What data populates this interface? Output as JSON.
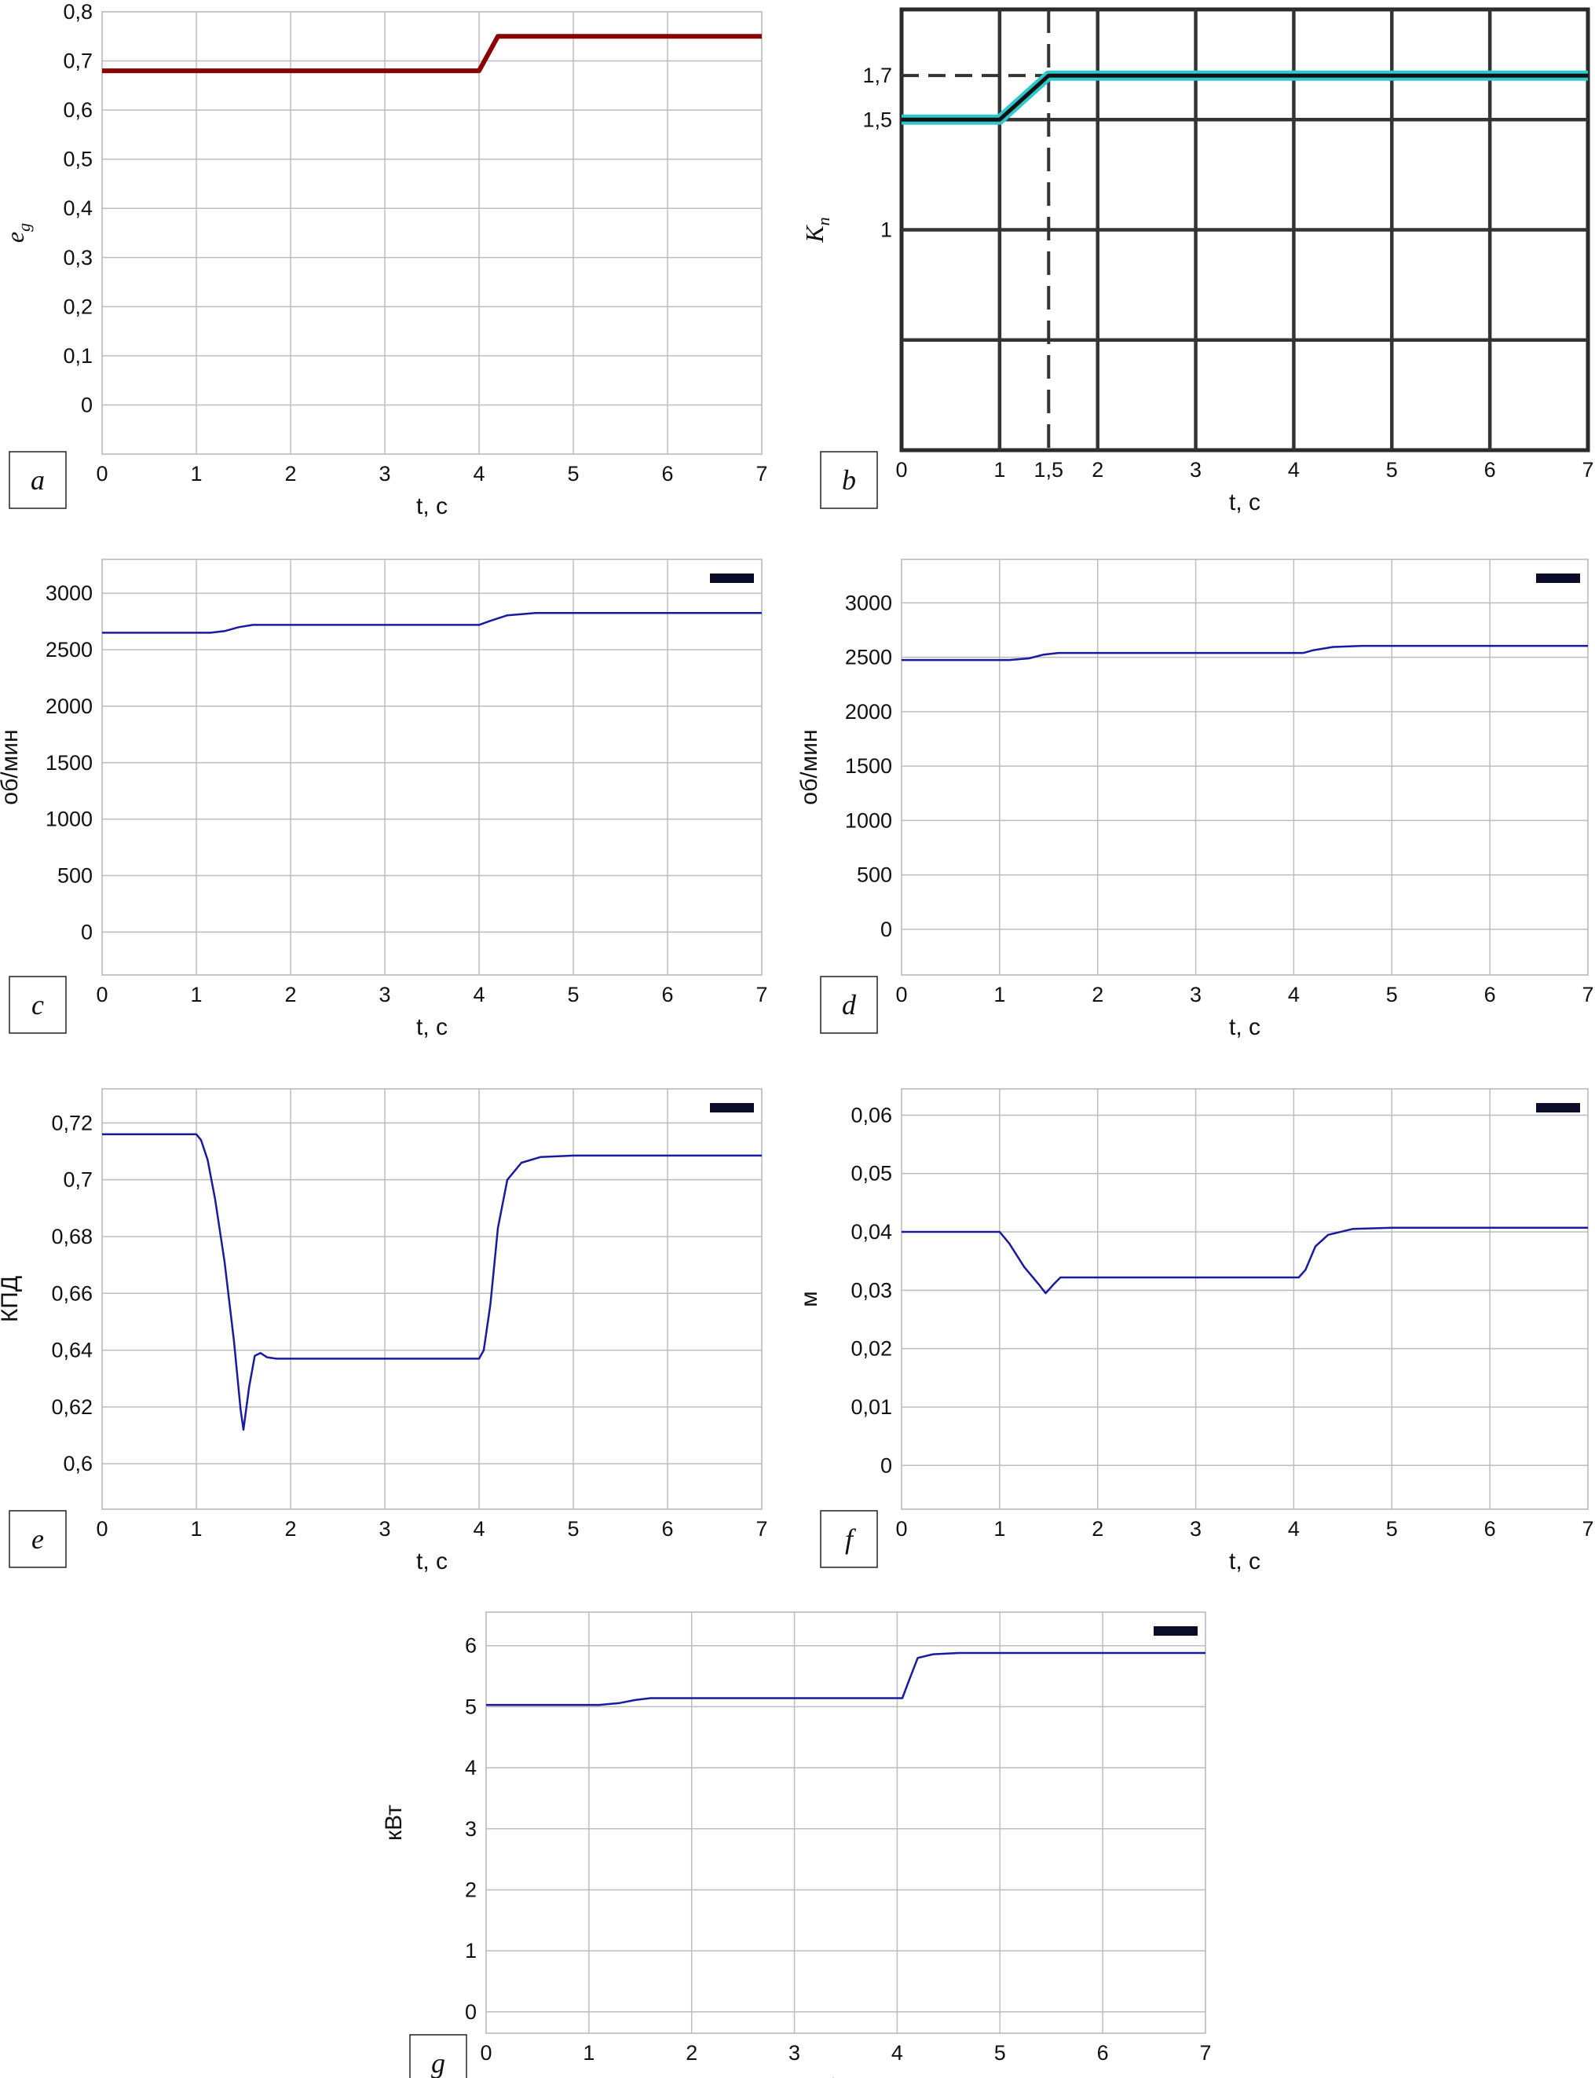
{
  "chart_data": [
    {
      "id": "a",
      "panel_label": "a",
      "type": "line",
      "xlabel": "t, c",
      "ylabel": "e",
      "ylabel_sub": "g",
      "xlim": [
        0,
        7
      ],
      "ylim": [
        -0.1,
        0.8
      ],
      "xticks": [
        "0",
        "1",
        "2",
        "3",
        "4",
        "5",
        "6",
        "7"
      ],
      "yticks": [
        "0,8",
        "0,7",
        "0,6",
        "0,5",
        "0,4",
        "0,3",
        "0,2",
        "0,1",
        "0"
      ],
      "grid": true,
      "line_color": "#8b0000",
      "line_width": 6,
      "series": [
        {
          "x": [
            0,
            4.0,
            4.2,
            7
          ],
          "y": [
            0.68,
            0.68,
            0.75,
            0.75
          ]
        }
      ]
    },
    {
      "id": "b",
      "panel_label": "b",
      "type": "line",
      "xlabel": "t, c",
      "ylabel": "K",
      "ylabel_sub": "п",
      "xlim": [
        0,
        7
      ],
      "ylim": [
        0.0,
        2.0
      ],
      "xticks": [
        "0",
        "1",
        "1,5",
        "2",
        "3",
        "4",
        "5",
        "6",
        "7"
      ],
      "yticks": [
        "1,7",
        "1,5",
        "1"
      ],
      "grid": true,
      "grid_style": "heavy",
      "line_color": "#111111",
      "glow_color": "#2ec8cc",
      "series": [
        {
          "x": [
            0,
            1.0,
            1.5,
            7
          ],
          "y": [
            1.5,
            1.5,
            1.7,
            1.7
          ]
        }
      ],
      "annotations": [
        {
          "kind": "hline-dash",
          "y": 1.7,
          "x_from": 0,
          "x_to": 1.5
        },
        {
          "kind": "vline-dash",
          "x": 1.5
        }
      ]
    },
    {
      "id": "c",
      "panel_label": "c",
      "type": "line",
      "xlabel": "t, c",
      "ylabel": "об/мин",
      "xlim": [
        0,
        7
      ],
      "ylim": [
        -380,
        3300
      ],
      "xticks": [
        "0",
        "1",
        "2",
        "3",
        "4",
        "5",
        "6",
        "7"
      ],
      "yticks": [
        "3000",
        "2500",
        "2000",
        "1500",
        "1000",
        "500",
        "0"
      ],
      "grid": true,
      "line_color": "#1a1aa0",
      "legend": "top-right",
      "series": [
        {
          "x": [
            0,
            1.15,
            1.3,
            1.45,
            1.6,
            4.0,
            4.1,
            4.3,
            4.6,
            7
          ],
          "y": [
            2650,
            2650,
            2665,
            2700,
            2720,
            2720,
            2750,
            2805,
            2825,
            2825
          ]
        }
      ]
    },
    {
      "id": "d",
      "panel_label": "d",
      "type": "line",
      "xlabel": "t, c",
      "ylabel": "об/мин",
      "xlim": [
        0,
        7
      ],
      "ylim": [
        -420,
        3400
      ],
      "xticks": [
        "0",
        "1",
        "2",
        "3",
        "4",
        "5",
        "6",
        "7"
      ],
      "yticks": [
        "3000",
        "2500",
        "2000",
        "1500",
        "1000",
        "500",
        "0"
      ],
      "grid": true,
      "line_color": "#1a1aa0",
      "legend": "top-right",
      "series": [
        {
          "x": [
            0,
            1.1,
            1.3,
            1.45,
            1.6,
            4.1,
            4.2,
            4.4,
            4.7,
            7
          ],
          "y": [
            2475,
            2475,
            2490,
            2525,
            2540,
            2540,
            2565,
            2595,
            2605,
            2605
          ]
        }
      ]
    },
    {
      "id": "e",
      "panel_label": "e",
      "type": "line",
      "xlabel": "t, c",
      "ylabel": "КПД",
      "xlim": [
        0,
        7
      ],
      "ylim": [
        0.584,
        0.732
      ],
      "xticks": [
        "0",
        "1",
        "2",
        "3",
        "4",
        "5",
        "6",
        "7"
      ],
      "yticks": [
        "0,72",
        "0,7",
        "0,68",
        "0,66",
        "0,64",
        "0,62",
        "0,6"
      ],
      "grid": true,
      "line_color": "#1a1aa0",
      "legend": "top-right",
      "series": [
        {
          "x": [
            0,
            1.0,
            1.05,
            1.12,
            1.2,
            1.3,
            1.4,
            1.47,
            1.5,
            1.56,
            1.62,
            1.68,
            1.75,
            1.85,
            4.0,
            4.05,
            4.12,
            4.2,
            4.3,
            4.45,
            4.65,
            5.0,
            7
          ],
          "y": [
            0.716,
            0.716,
            0.714,
            0.707,
            0.693,
            0.671,
            0.643,
            0.619,
            0.612,
            0.627,
            0.638,
            0.639,
            0.6375,
            0.637,
            0.637,
            0.64,
            0.656,
            0.683,
            0.7,
            0.706,
            0.708,
            0.7085,
            0.7085
          ]
        }
      ]
    },
    {
      "id": "f",
      "panel_label": "f",
      "type": "line",
      "xlabel": "t, c",
      "ylabel": "м",
      "xlim": [
        0,
        7
      ],
      "ylim": [
        -0.0075,
        0.0645
      ],
      "xticks": [
        "0",
        "1",
        "2",
        "3",
        "4",
        "5",
        "6",
        "7"
      ],
      "yticks": [
        "0,06",
        "0,05",
        "0,04",
        "0,03",
        "0,02",
        "0,01",
        "0"
      ],
      "grid": true,
      "line_color": "#1a1aa0",
      "legend": "top-right",
      "series": [
        {
          "x": [
            0,
            1.0,
            1.1,
            1.25,
            1.4,
            1.47,
            1.55,
            1.62,
            1.7,
            4.05,
            4.12,
            4.22,
            4.35,
            4.6,
            5.0,
            7
          ],
          "y": [
            0.04,
            0.04,
            0.038,
            0.034,
            0.031,
            0.0295,
            0.031,
            0.0322,
            0.0322,
            0.0322,
            0.0335,
            0.0375,
            0.0395,
            0.0405,
            0.0407,
            0.0407
          ]
        }
      ]
    },
    {
      "id": "g",
      "panel_label": "g",
      "type": "line",
      "xlabel": "t, c",
      "ylabel": "кВт",
      "xlim": [
        0,
        7
      ],
      "ylim": [
        -0.35,
        6.55
      ],
      "xticks": [
        "0",
        "1",
        "2",
        "3",
        "4",
        "5",
        "6",
        "7"
      ],
      "yticks": [
        "6",
        "5",
        "4",
        "3",
        "2",
        "1",
        "0"
      ],
      "grid": true,
      "line_color": "#1a1aa0",
      "legend": "top-right",
      "series": [
        {
          "x": [
            0,
            1.1,
            1.3,
            1.45,
            1.6,
            4.05,
            4.12,
            4.2,
            4.35,
            4.6,
            7
          ],
          "y": [
            5.03,
            5.03,
            5.06,
            5.11,
            5.14,
            5.14,
            5.45,
            5.8,
            5.86,
            5.88,
            5.88
          ]
        }
      ]
    }
  ]
}
